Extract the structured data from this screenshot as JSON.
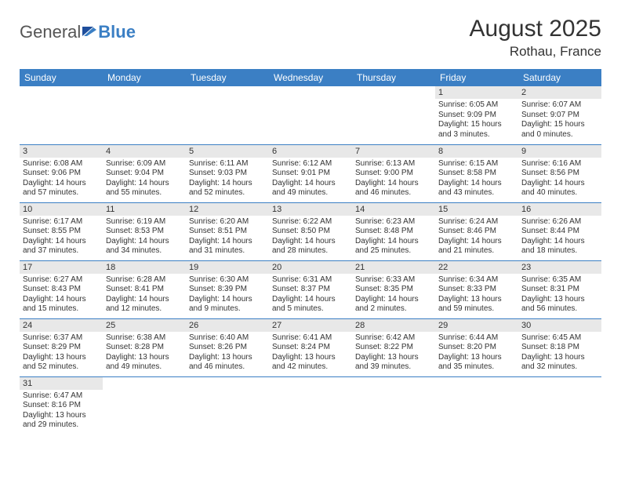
{
  "brand": {
    "part1": "General",
    "part2": "Blue"
  },
  "title": "August 2025",
  "location": "Rothau, France",
  "colors": {
    "header_bg": "#3b7fc4",
    "header_fg": "#ffffff",
    "daynum_bg": "#e8e8e8",
    "row_border": "#3b7fc4",
    "text": "#333333",
    "logo_gray": "#555555",
    "logo_blue": "#3b7fc4"
  },
  "weekdays": [
    "Sunday",
    "Monday",
    "Tuesday",
    "Wednesday",
    "Thursday",
    "Friday",
    "Saturday"
  ],
  "weeks": [
    [
      null,
      null,
      null,
      null,
      null,
      {
        "day": "1",
        "sunrise": "Sunrise: 6:05 AM",
        "sunset": "Sunset: 9:09 PM",
        "daylight": "Daylight: 15 hours and 3 minutes."
      },
      {
        "day": "2",
        "sunrise": "Sunrise: 6:07 AM",
        "sunset": "Sunset: 9:07 PM",
        "daylight": "Daylight: 15 hours and 0 minutes."
      }
    ],
    [
      {
        "day": "3",
        "sunrise": "Sunrise: 6:08 AM",
        "sunset": "Sunset: 9:06 PM",
        "daylight": "Daylight: 14 hours and 57 minutes."
      },
      {
        "day": "4",
        "sunrise": "Sunrise: 6:09 AM",
        "sunset": "Sunset: 9:04 PM",
        "daylight": "Daylight: 14 hours and 55 minutes."
      },
      {
        "day": "5",
        "sunrise": "Sunrise: 6:11 AM",
        "sunset": "Sunset: 9:03 PM",
        "daylight": "Daylight: 14 hours and 52 minutes."
      },
      {
        "day": "6",
        "sunrise": "Sunrise: 6:12 AM",
        "sunset": "Sunset: 9:01 PM",
        "daylight": "Daylight: 14 hours and 49 minutes."
      },
      {
        "day": "7",
        "sunrise": "Sunrise: 6:13 AM",
        "sunset": "Sunset: 9:00 PM",
        "daylight": "Daylight: 14 hours and 46 minutes."
      },
      {
        "day": "8",
        "sunrise": "Sunrise: 6:15 AM",
        "sunset": "Sunset: 8:58 PM",
        "daylight": "Daylight: 14 hours and 43 minutes."
      },
      {
        "day": "9",
        "sunrise": "Sunrise: 6:16 AM",
        "sunset": "Sunset: 8:56 PM",
        "daylight": "Daylight: 14 hours and 40 minutes."
      }
    ],
    [
      {
        "day": "10",
        "sunrise": "Sunrise: 6:17 AM",
        "sunset": "Sunset: 8:55 PM",
        "daylight": "Daylight: 14 hours and 37 minutes."
      },
      {
        "day": "11",
        "sunrise": "Sunrise: 6:19 AM",
        "sunset": "Sunset: 8:53 PM",
        "daylight": "Daylight: 14 hours and 34 minutes."
      },
      {
        "day": "12",
        "sunrise": "Sunrise: 6:20 AM",
        "sunset": "Sunset: 8:51 PM",
        "daylight": "Daylight: 14 hours and 31 minutes."
      },
      {
        "day": "13",
        "sunrise": "Sunrise: 6:22 AM",
        "sunset": "Sunset: 8:50 PM",
        "daylight": "Daylight: 14 hours and 28 minutes."
      },
      {
        "day": "14",
        "sunrise": "Sunrise: 6:23 AM",
        "sunset": "Sunset: 8:48 PM",
        "daylight": "Daylight: 14 hours and 25 minutes."
      },
      {
        "day": "15",
        "sunrise": "Sunrise: 6:24 AM",
        "sunset": "Sunset: 8:46 PM",
        "daylight": "Daylight: 14 hours and 21 minutes."
      },
      {
        "day": "16",
        "sunrise": "Sunrise: 6:26 AM",
        "sunset": "Sunset: 8:44 PM",
        "daylight": "Daylight: 14 hours and 18 minutes."
      }
    ],
    [
      {
        "day": "17",
        "sunrise": "Sunrise: 6:27 AM",
        "sunset": "Sunset: 8:43 PM",
        "daylight": "Daylight: 14 hours and 15 minutes."
      },
      {
        "day": "18",
        "sunrise": "Sunrise: 6:28 AM",
        "sunset": "Sunset: 8:41 PM",
        "daylight": "Daylight: 14 hours and 12 minutes."
      },
      {
        "day": "19",
        "sunrise": "Sunrise: 6:30 AM",
        "sunset": "Sunset: 8:39 PM",
        "daylight": "Daylight: 14 hours and 9 minutes."
      },
      {
        "day": "20",
        "sunrise": "Sunrise: 6:31 AM",
        "sunset": "Sunset: 8:37 PM",
        "daylight": "Daylight: 14 hours and 5 minutes."
      },
      {
        "day": "21",
        "sunrise": "Sunrise: 6:33 AM",
        "sunset": "Sunset: 8:35 PM",
        "daylight": "Daylight: 14 hours and 2 minutes."
      },
      {
        "day": "22",
        "sunrise": "Sunrise: 6:34 AM",
        "sunset": "Sunset: 8:33 PM",
        "daylight": "Daylight: 13 hours and 59 minutes."
      },
      {
        "day": "23",
        "sunrise": "Sunrise: 6:35 AM",
        "sunset": "Sunset: 8:31 PM",
        "daylight": "Daylight: 13 hours and 56 minutes."
      }
    ],
    [
      {
        "day": "24",
        "sunrise": "Sunrise: 6:37 AM",
        "sunset": "Sunset: 8:29 PM",
        "daylight": "Daylight: 13 hours and 52 minutes."
      },
      {
        "day": "25",
        "sunrise": "Sunrise: 6:38 AM",
        "sunset": "Sunset: 8:28 PM",
        "daylight": "Daylight: 13 hours and 49 minutes."
      },
      {
        "day": "26",
        "sunrise": "Sunrise: 6:40 AM",
        "sunset": "Sunset: 8:26 PM",
        "daylight": "Daylight: 13 hours and 46 minutes."
      },
      {
        "day": "27",
        "sunrise": "Sunrise: 6:41 AM",
        "sunset": "Sunset: 8:24 PM",
        "daylight": "Daylight: 13 hours and 42 minutes."
      },
      {
        "day": "28",
        "sunrise": "Sunrise: 6:42 AM",
        "sunset": "Sunset: 8:22 PM",
        "daylight": "Daylight: 13 hours and 39 minutes."
      },
      {
        "day": "29",
        "sunrise": "Sunrise: 6:44 AM",
        "sunset": "Sunset: 8:20 PM",
        "daylight": "Daylight: 13 hours and 35 minutes."
      },
      {
        "day": "30",
        "sunrise": "Sunrise: 6:45 AM",
        "sunset": "Sunset: 8:18 PM",
        "daylight": "Daylight: 13 hours and 32 minutes."
      }
    ],
    [
      {
        "day": "31",
        "sunrise": "Sunrise: 6:47 AM",
        "sunset": "Sunset: 8:16 PM",
        "daylight": "Daylight: 13 hours and 29 minutes."
      },
      null,
      null,
      null,
      null,
      null,
      null
    ]
  ]
}
